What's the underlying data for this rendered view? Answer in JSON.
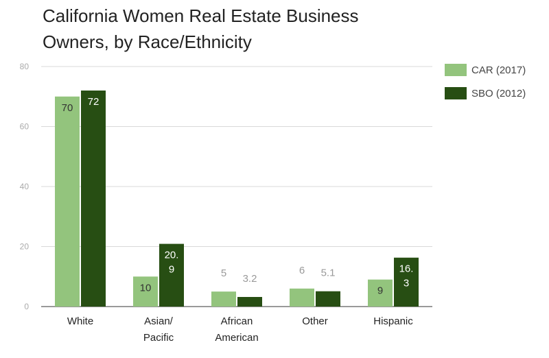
{
  "chart_data": {
    "type": "bar",
    "title": "California Women Real Estate Business Owners, by Race/Ethnicity",
    "categories": [
      [
        "White"
      ],
      [
        "Asian/",
        "Pacific"
      ],
      [
        "African",
        "American"
      ],
      [
        "Other"
      ],
      [
        "Hispanic"
      ]
    ],
    "series": [
      {
        "name": "CAR (2017)",
        "color": "#93c47d",
        "values": [
          70,
          10,
          5,
          6,
          9
        ],
        "labels": [
          [
            "70"
          ],
          [
            "10"
          ],
          [
            "5"
          ],
          [
            "6"
          ],
          [
            "9"
          ]
        ]
      },
      {
        "name": "SBO (2012)",
        "color": "#274e13",
        "values": [
          72,
          20.9,
          3.2,
          5.1,
          16.3
        ],
        "labels": [
          [
            "72"
          ],
          [
            "20.",
            "9"
          ],
          [
            "3.2"
          ],
          [
            "5.1"
          ],
          [
            "16.",
            "3"
          ]
        ]
      }
    ],
    "yticks": [
      "0",
      "20",
      "40",
      "60",
      "80"
    ],
    "ylim": [
      0,
      80
    ],
    "grid": true,
    "legend": "right"
  }
}
